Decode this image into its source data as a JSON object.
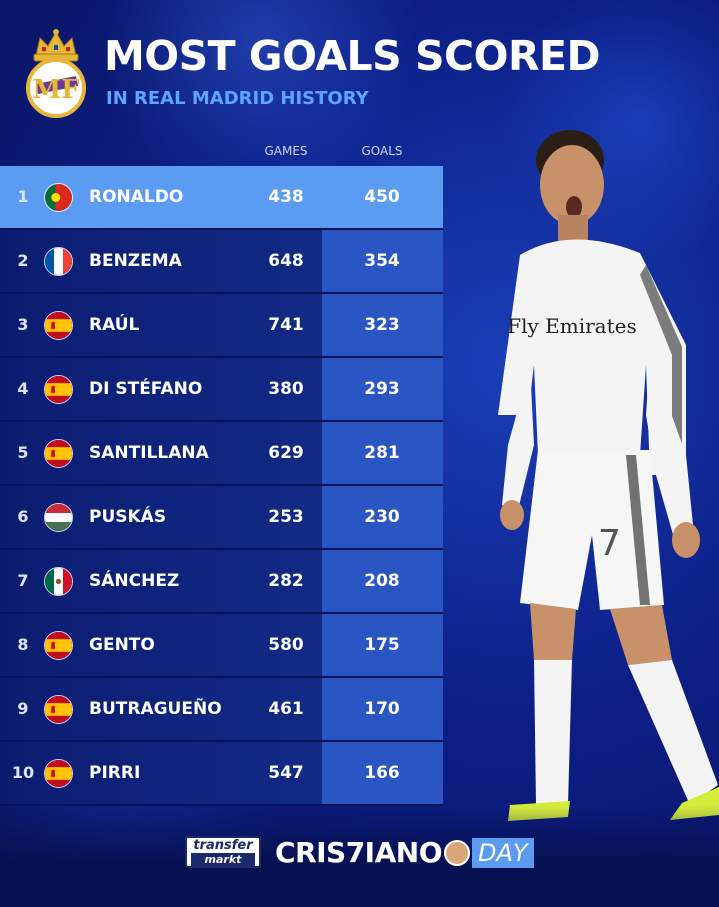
{
  "header": {
    "title": "MOST GOALS SCORED",
    "subtitle": "IN REAL MADRID HISTORY"
  },
  "columns": {
    "games": "GAMES",
    "goals": "GOALS"
  },
  "rows": [
    {
      "rank": "1",
      "name": "RONALDO",
      "games": "438",
      "goals": "450",
      "flag": "portugal"
    },
    {
      "rank": "2",
      "name": "BENZEMA",
      "games": "648",
      "goals": "354",
      "flag": "france"
    },
    {
      "rank": "3",
      "name": "RAÚL",
      "games": "741",
      "goals": "323",
      "flag": "spain"
    },
    {
      "rank": "4",
      "name": "DI STÉFANO",
      "games": "380",
      "goals": "293",
      "flag": "spain"
    },
    {
      "rank": "5",
      "name": "SANTILLANA",
      "games": "629",
      "goals": "281",
      "flag": "spain"
    },
    {
      "rank": "6",
      "name": "PUSKÁS",
      "games": "253",
      "goals": "230",
      "flag": "hungary"
    },
    {
      "rank": "7",
      "name": "SÁNCHEZ",
      "games": "282",
      "goals": "208",
      "flag": "mexico"
    },
    {
      "rank": "8",
      "name": "GENTO",
      "games": "580",
      "goals": "175",
      "flag": "spain"
    },
    {
      "rank": "9",
      "name": "BUTRAGUEÑO",
      "games": "461",
      "goals": "170",
      "flag": "spain"
    },
    {
      "rank": "10",
      "name": "PIRRI",
      "games": "547",
      "goals": "166",
      "flag": "spain"
    }
  ],
  "footer": {
    "tm_top": "transfer",
    "tm_bottom": "markt",
    "cd_main": "CRIS7IANO",
    "cd_day": "DAY"
  },
  "player": {
    "shirt_sponsor": "Fly Emirates",
    "shirt_number": "7"
  },
  "colors": {
    "background": "#0c1f86",
    "highlight_row": "#5b9cf2",
    "goals_cell": "#2a56c4",
    "subtitle": "#5fa5ff"
  },
  "icons": {
    "crest": "real-madrid-crest-icon",
    "flags": [
      "portugal-flag-icon",
      "france-flag-icon",
      "spain-flag-icon",
      "hungary-flag-icon",
      "mexico-flag-icon"
    ]
  }
}
